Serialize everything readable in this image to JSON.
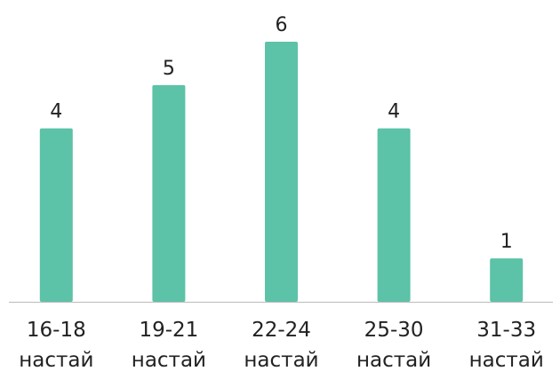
{
  "chart_data": {
    "type": "bar",
    "categories": [
      "16-18 настай",
      "19-21 настай",
      "22-24 настай",
      "25-30 настай",
      "31-33 настай"
    ],
    "values": [
      4,
      5,
      6,
      4,
      1
    ],
    "color": "#5cc2a8",
    "ylim": [
      0,
      6
    ]
  }
}
